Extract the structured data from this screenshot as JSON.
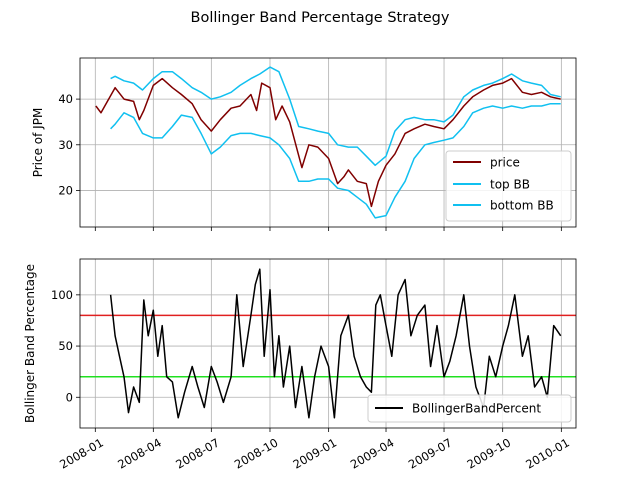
{
  "figure": {
    "title": "Bollinger Band Percentage Strategy"
  },
  "chart_data": [
    {
      "type": "line",
      "ylabel": "Price of JPM",
      "xlabel": "",
      "xlim": [
        "2007-12-08",
        "2010-01-24"
      ],
      "ylim": [
        12,
        49
      ],
      "yticks": [
        20,
        30,
        40
      ],
      "xticks": [
        "2008-01-01",
        "2008-04-01",
        "2008-07-01",
        "2008-10-01",
        "2009-01-01",
        "2009-04-01",
        "2009-07-01",
        "2009-10-01",
        "2010-01-01"
      ],
      "grid": true,
      "legend_position": "lower right",
      "series": [
        {
          "name": "price",
          "color": "#800000",
          "x": [
            "2008-01-02",
            "2008-01-10",
            "2008-01-20",
            "2008-02-01",
            "2008-02-15",
            "2008-03-01",
            "2008-03-10",
            "2008-03-17",
            "2008-04-01",
            "2008-04-15",
            "2008-05-01",
            "2008-05-15",
            "2008-06-01",
            "2008-06-15",
            "2008-07-01",
            "2008-07-15",
            "2008-08-01",
            "2008-08-15",
            "2008-09-01",
            "2008-09-10",
            "2008-09-18",
            "2008-10-01",
            "2008-10-10",
            "2008-10-20",
            "2008-11-01",
            "2008-11-20",
            "2008-12-01",
            "2008-12-15",
            "2009-01-01",
            "2009-01-15",
            "2009-01-25",
            "2009-02-01",
            "2009-02-15",
            "2009-03-01",
            "2009-03-09",
            "2009-03-20",
            "2009-04-01",
            "2009-04-15",
            "2009-05-01",
            "2009-05-15",
            "2009-06-01",
            "2009-06-15",
            "2009-07-01",
            "2009-07-15",
            "2009-08-01",
            "2009-08-15",
            "2009-09-01",
            "2009-09-15",
            "2009-10-01",
            "2009-10-15",
            "2009-11-01",
            "2009-11-15",
            "2009-12-01",
            "2009-12-15",
            "2009-12-31"
          ],
          "values": [
            38.5,
            37.0,
            39.5,
            42.5,
            40.0,
            39.5,
            35.5,
            37.5,
            43.0,
            44.5,
            42.5,
            41.0,
            39.0,
            35.5,
            33.0,
            35.5,
            38.0,
            38.5,
            41.0,
            37.5,
            43.5,
            42.5,
            35.5,
            38.5,
            35.0,
            25.0,
            30.0,
            29.5,
            27.0,
            21.5,
            23.0,
            24.5,
            22.0,
            21.5,
            16.5,
            22.0,
            25.5,
            28.0,
            32.5,
            33.5,
            34.5,
            34.0,
            33.5,
            35.5,
            38.5,
            40.5,
            42.0,
            43.0,
            43.5,
            44.5,
            41.5,
            41.0,
            41.5,
            40.5,
            40.0
          ]
        },
        {
          "name": "top BB",
          "color": "#10c0f0",
          "x": [
            "2008-01-25",
            "2008-02-01",
            "2008-02-15",
            "2008-03-01",
            "2008-03-15",
            "2008-04-01",
            "2008-04-15",
            "2008-05-01",
            "2008-05-15",
            "2008-06-01",
            "2008-06-15",
            "2008-07-01",
            "2008-07-15",
            "2008-08-01",
            "2008-08-15",
            "2008-09-01",
            "2008-09-15",
            "2008-10-01",
            "2008-10-15",
            "2008-11-01",
            "2008-11-15",
            "2008-12-01",
            "2008-12-15",
            "2009-01-01",
            "2009-01-15",
            "2009-02-01",
            "2009-02-15",
            "2009-03-01",
            "2009-03-15",
            "2009-04-01",
            "2009-04-15",
            "2009-05-01",
            "2009-05-15",
            "2009-06-01",
            "2009-06-15",
            "2009-07-01",
            "2009-07-15",
            "2009-08-01",
            "2009-08-15",
            "2009-09-01",
            "2009-09-15",
            "2009-10-01",
            "2009-10-15",
            "2009-11-01",
            "2009-11-15",
            "2009-12-01",
            "2009-12-15",
            "2009-12-31"
          ],
          "values": [
            44.5,
            45.0,
            44.0,
            43.5,
            42.0,
            44.5,
            46.0,
            46.0,
            44.5,
            42.5,
            41.5,
            40.0,
            40.5,
            41.5,
            43.0,
            44.5,
            45.5,
            47.0,
            46.0,
            40.0,
            34.0,
            33.5,
            33.0,
            32.5,
            30.0,
            29.5,
            29.5,
            27.5,
            25.5,
            27.5,
            33.0,
            35.5,
            36.0,
            35.5,
            35.5,
            35.0,
            36.5,
            40.5,
            42.0,
            43.0,
            43.5,
            44.5,
            45.5,
            44.0,
            43.5,
            43.0,
            41.0,
            40.5
          ]
        },
        {
          "name": "bottom BB",
          "color": "#10c0f0",
          "x": [
            "2008-01-25",
            "2008-02-01",
            "2008-02-15",
            "2008-03-01",
            "2008-03-15",
            "2008-04-01",
            "2008-04-15",
            "2008-05-01",
            "2008-05-15",
            "2008-06-01",
            "2008-06-15",
            "2008-07-01",
            "2008-07-15",
            "2008-08-01",
            "2008-08-15",
            "2008-09-01",
            "2008-09-15",
            "2008-10-01",
            "2008-10-15",
            "2008-11-01",
            "2008-11-15",
            "2008-12-01",
            "2008-12-15",
            "2009-01-01",
            "2009-01-15",
            "2009-02-01",
            "2009-02-15",
            "2009-03-01",
            "2009-03-15",
            "2009-04-01",
            "2009-04-15",
            "2009-05-01",
            "2009-05-15",
            "2009-06-01",
            "2009-06-15",
            "2009-07-01",
            "2009-07-15",
            "2009-08-01",
            "2009-08-15",
            "2009-09-01",
            "2009-09-15",
            "2009-10-01",
            "2009-10-15",
            "2009-11-01",
            "2009-11-15",
            "2009-12-01",
            "2009-12-15",
            "2009-12-31"
          ],
          "values": [
            33.5,
            34.5,
            37.0,
            36.0,
            32.5,
            31.5,
            31.5,
            34.0,
            36.5,
            36.0,
            32.5,
            28.0,
            29.5,
            32.0,
            32.5,
            32.5,
            32.0,
            31.5,
            30.0,
            27.0,
            22.0,
            22.0,
            22.5,
            22.5,
            20.5,
            20.0,
            18.5,
            17.0,
            14.0,
            14.5,
            18.5,
            22.0,
            27.0,
            30.0,
            30.5,
            31.0,
            31.5,
            34.0,
            37.0,
            38.0,
            38.5,
            38.0,
            38.5,
            38.0,
            38.5,
            38.5,
            39.0,
            39.0
          ]
        }
      ]
    },
    {
      "type": "line",
      "ylabel": "Bollinger Band Percentage",
      "xlabel": "",
      "xlim": [
        "2007-12-08",
        "2010-01-24"
      ],
      "ylim": [
        -30,
        135
      ],
      "yticks": [
        0,
        50,
        100
      ],
      "xticks": [
        "2008-01-01",
        "2008-04-01",
        "2008-07-01",
        "2008-10-01",
        "2009-01-01",
        "2009-04-01",
        "2009-07-01",
        "2009-10-01",
        "2010-01-01"
      ],
      "xticklabels": [
        "2008-01",
        "2008-04",
        "2008-07",
        "2008-10",
        "2009-01",
        "2009-04",
        "2009-07",
        "2009-10",
        "2010-01"
      ],
      "grid": true,
      "legend_position": "lower right",
      "hlines": [
        {
          "y": 80,
          "color": "#e02020"
        },
        {
          "y": 20,
          "color": "#20e020"
        }
      ],
      "series": [
        {
          "name": "BollingerBandPercent",
          "color": "#000000",
          "x": [
            "2008-01-25",
            "2008-02-01",
            "2008-02-08",
            "2008-02-15",
            "2008-02-22",
            "2008-03-01",
            "2008-03-10",
            "2008-03-17",
            "2008-03-24",
            "2008-04-01",
            "2008-04-08",
            "2008-04-15",
            "2008-04-22",
            "2008-05-01",
            "2008-05-10",
            "2008-05-20",
            "2008-06-01",
            "2008-06-10",
            "2008-06-20",
            "2008-07-01",
            "2008-07-10",
            "2008-07-20",
            "2008-08-01",
            "2008-08-10",
            "2008-08-20",
            "2008-09-01",
            "2008-09-08",
            "2008-09-15",
            "2008-09-22",
            "2008-10-01",
            "2008-10-08",
            "2008-10-15",
            "2008-10-22",
            "2008-11-01",
            "2008-11-10",
            "2008-11-20",
            "2008-12-01",
            "2008-12-10",
            "2008-12-20",
            "2009-01-01",
            "2009-01-10",
            "2009-01-20",
            "2009-02-01",
            "2009-02-10",
            "2009-02-20",
            "2009-03-01",
            "2009-03-09",
            "2009-03-16",
            "2009-03-23",
            "2009-04-01",
            "2009-04-10",
            "2009-04-20",
            "2009-05-01",
            "2009-05-10",
            "2009-05-20",
            "2009-06-01",
            "2009-06-10",
            "2009-06-20",
            "2009-07-01",
            "2009-07-10",
            "2009-07-20",
            "2009-08-01",
            "2009-08-10",
            "2009-08-20",
            "2009-09-01",
            "2009-09-10",
            "2009-09-20",
            "2009-10-01",
            "2009-10-10",
            "2009-10-20",
            "2009-11-01",
            "2009-11-10",
            "2009-11-20",
            "2009-12-01",
            "2009-12-10",
            "2009-12-20",
            "2009-12-31"
          ],
          "values": [
            100,
            60,
            40,
            20,
            -15,
            10,
            -5,
            95,
            60,
            85,
            40,
            70,
            20,
            15,
            -20,
            5,
            30,
            10,
            -10,
            30,
            15,
            -5,
            20,
            100,
            30,
            80,
            110,
            125,
            40,
            105,
            20,
            60,
            10,
            50,
            -10,
            30,
            -20,
            20,
            50,
            30,
            -20,
            60,
            80,
            40,
            20,
            10,
            5,
            90,
            100,
            70,
            40,
            100,
            115,
            60,
            80,
            90,
            30,
            70,
            20,
            35,
            60,
            100,
            50,
            10,
            -10,
            40,
            20,
            50,
            70,
            100,
            40,
            60,
            10,
            20,
            0,
            70,
            60
          ]
        }
      ]
    }
  ]
}
